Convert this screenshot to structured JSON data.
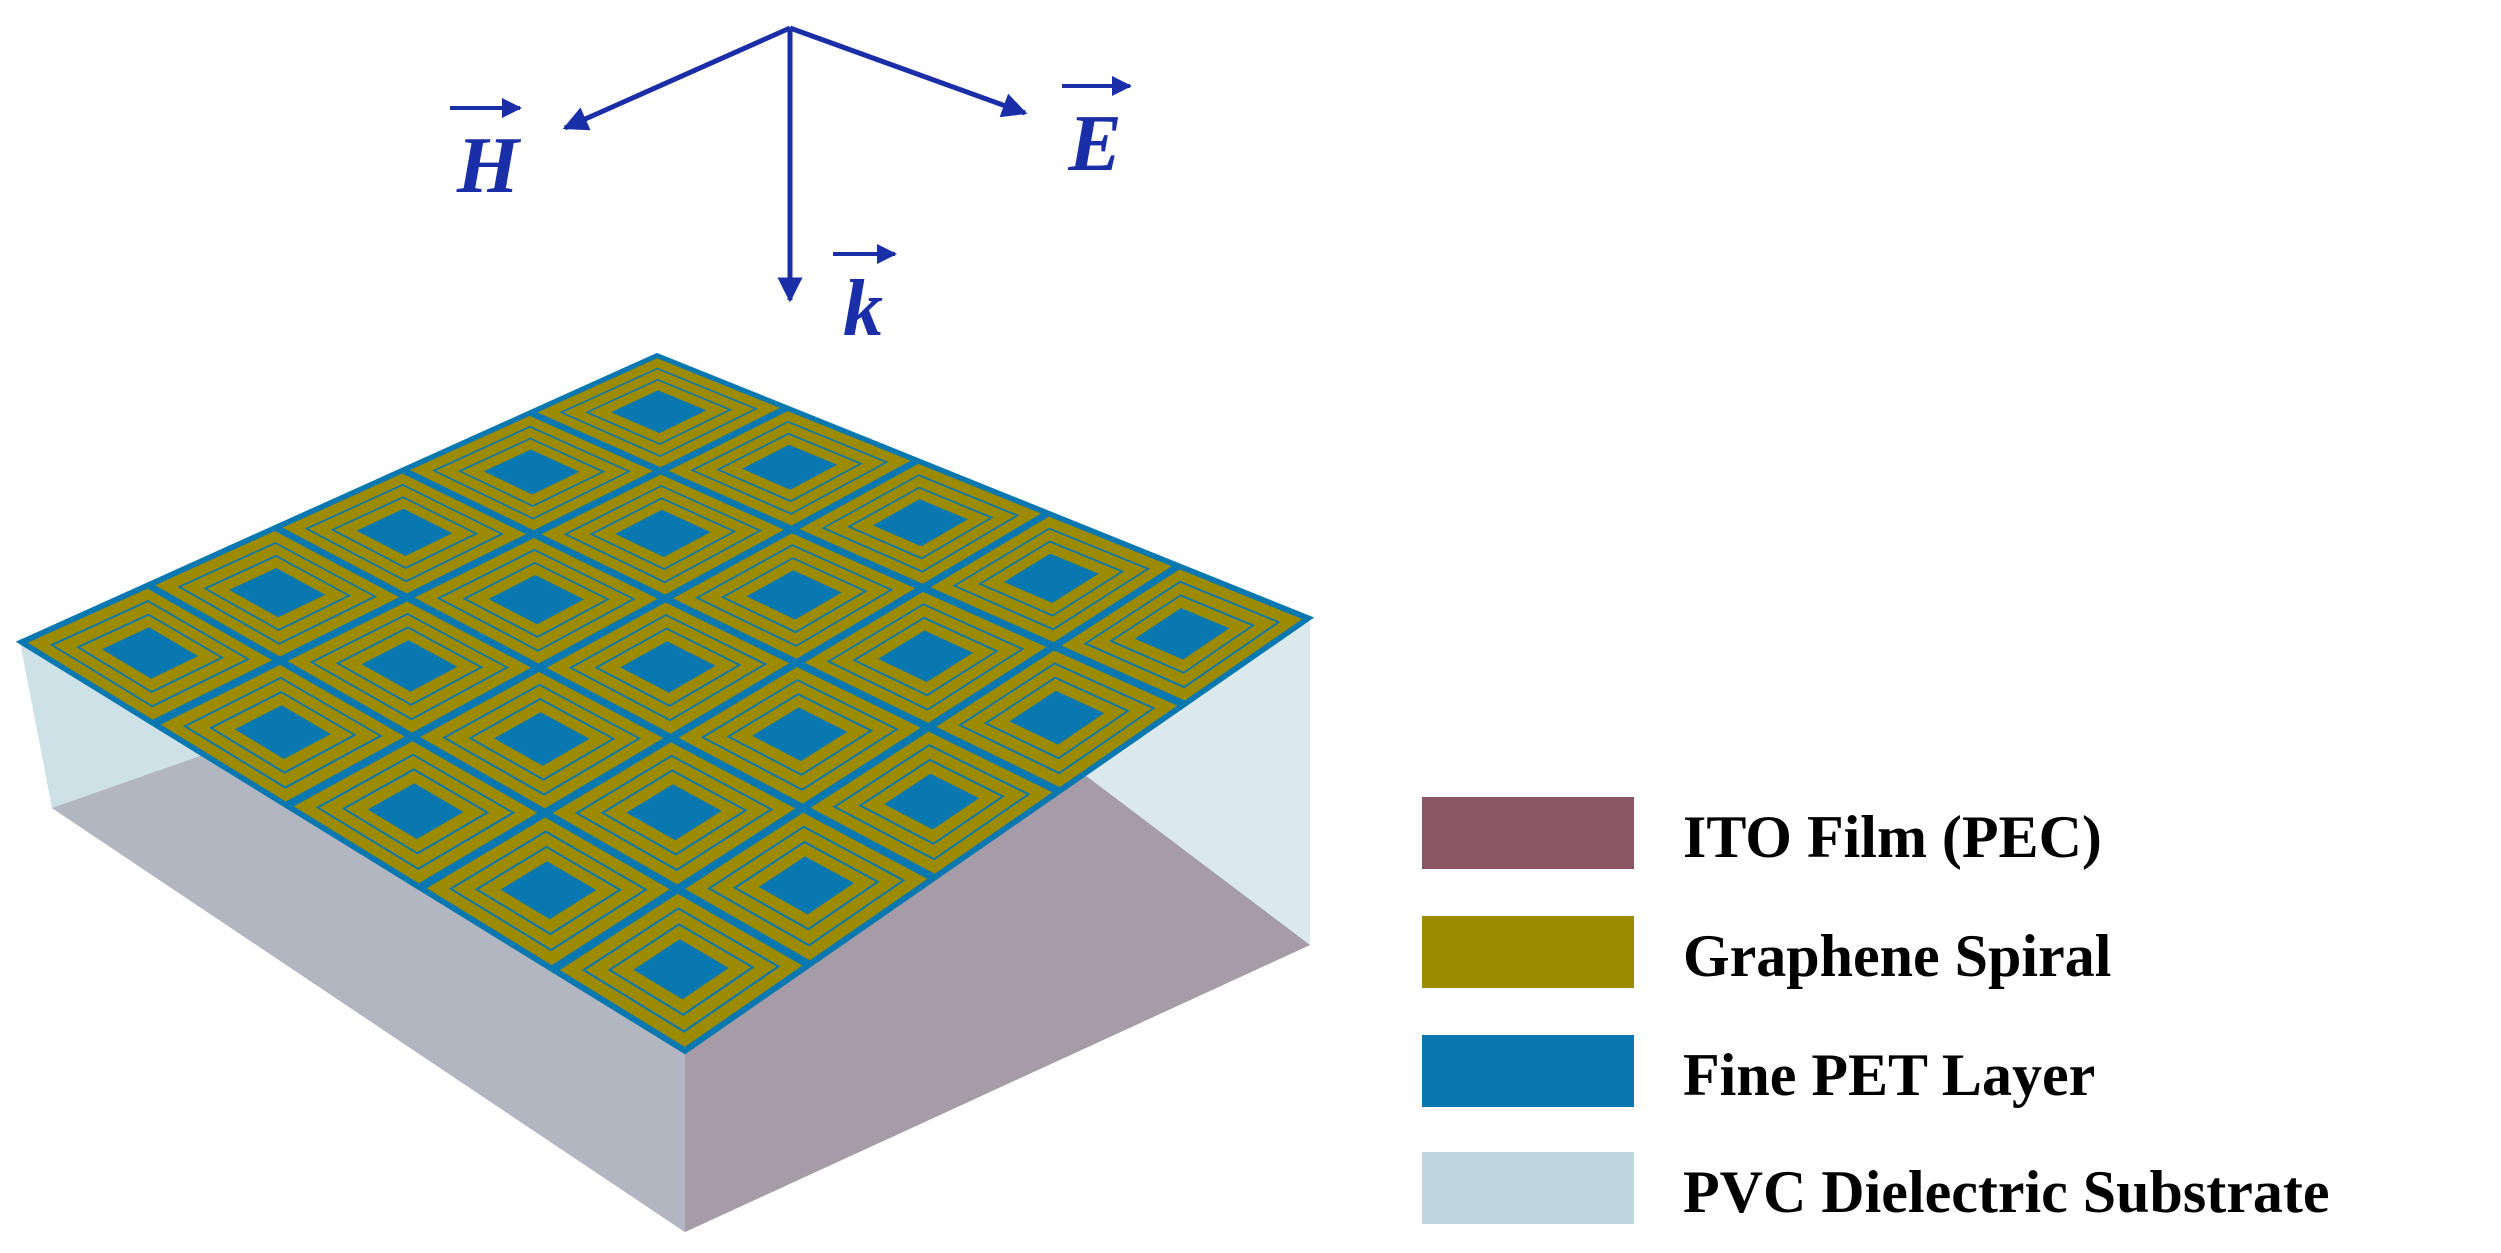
{
  "axes": {
    "labels": [
      "H",
      "E",
      "k"
    ],
    "color": "#1a2ea8"
  },
  "structure": {
    "grid_columns": 5,
    "grid_rows": 5,
    "colors": {
      "ito": "#8a5664",
      "graphene": "#9c8b00",
      "pet": "#0a78b0",
      "pvc": "#bdd7df"
    }
  },
  "legend": [
    {
      "label": "ITO Film (PEC)",
      "color": "#8a5664"
    },
    {
      "label": "Graphene Spiral",
      "color": "#9c8b00"
    },
    {
      "label": "Fine PET Layer",
      "color": "#0a78b0"
    },
    {
      "label": "PVC Dielectric Substrate",
      "color": "#bdd7df"
    }
  ]
}
